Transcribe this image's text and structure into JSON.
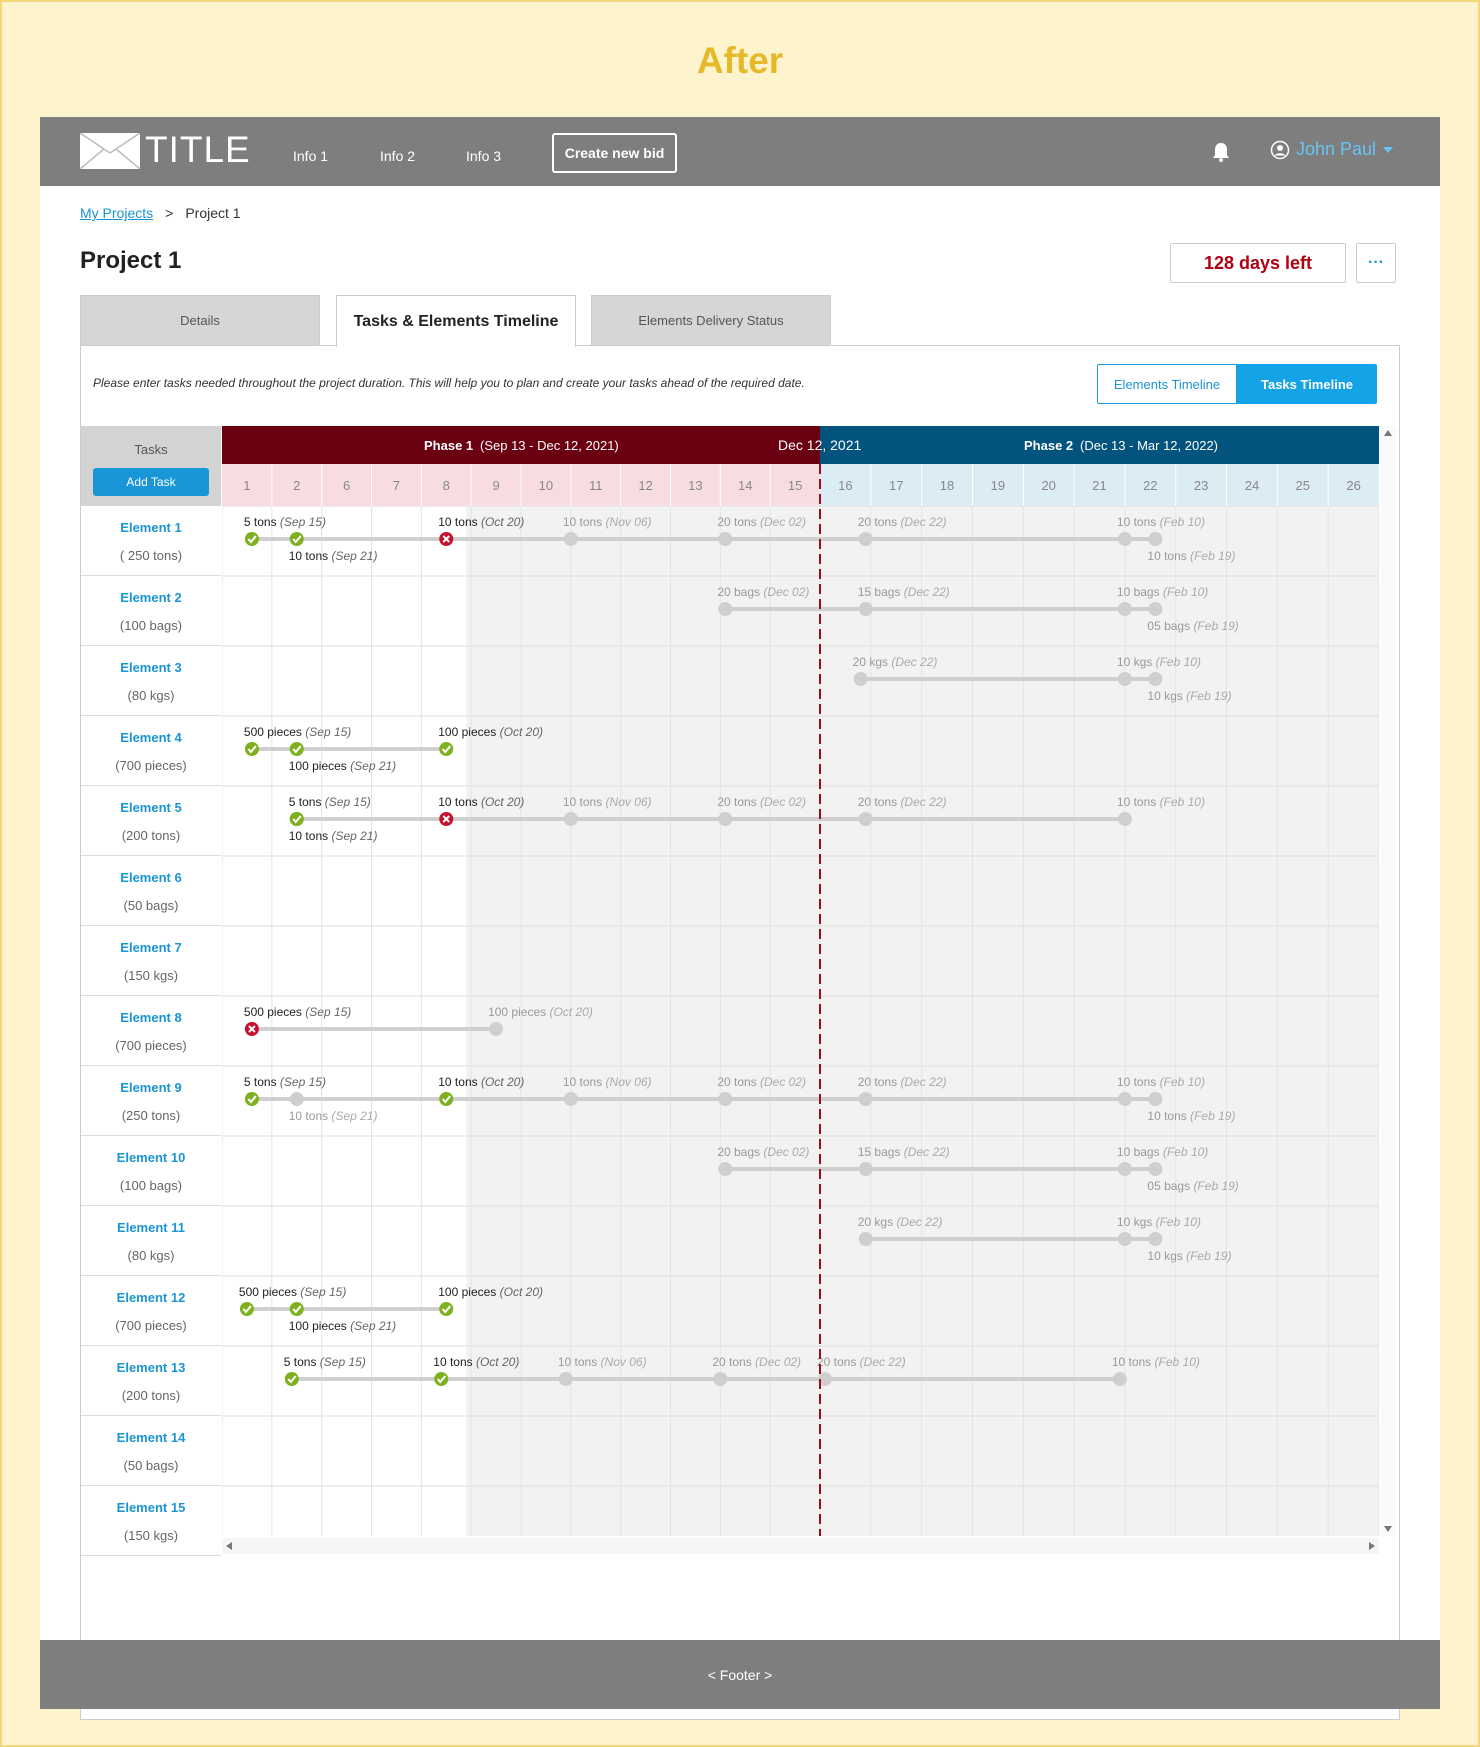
{
  "heading": "After",
  "header": {
    "logo_text": "TITLE",
    "nav": [
      "Info 1",
      "Info 2",
      "Info 3"
    ],
    "create_bid": "Create new bid",
    "user": "John Paul"
  },
  "breadcrumb": {
    "link": "My Projects",
    "sep": ">",
    "current": "Project 1"
  },
  "page": {
    "title": "Project 1",
    "days_left": "128 days left",
    "more": "···"
  },
  "tabs": [
    {
      "label": "Details"
    },
    {
      "label": "Tasks & Elements Timeline"
    },
    {
      "label": "Elements Delivery Status"
    }
  ],
  "panel": {
    "hint": "Please enter tasks needed throughout the project duration. This will help you to plan and create your tasks ahead of the required date.",
    "toggle_elements": "Elements Timeline",
    "toggle_tasks": "Tasks Timeline"
  },
  "grid": {
    "tasks_header": "Tasks",
    "add_task": "Add Task",
    "phase1": {
      "name": "Phase 1",
      "range": "(Sep 13 - Dec 12, 2021)"
    },
    "today_label": "Dec 12, 2021",
    "phase2": {
      "name": "Phase 2",
      "range": "(Dec 13 - Mar 12, 2022)"
    },
    "phase1_columns": [
      "1",
      "2",
      "6",
      "7",
      "8",
      "9",
      "10",
      "11",
      "12",
      "13",
      "14",
      "15"
    ],
    "phase2_columns": [
      "16",
      "17",
      "18",
      "19",
      "20",
      "21",
      "22",
      "23",
      "24",
      "25",
      "26"
    ]
  },
  "rows": [
    {
      "name": "Element 1",
      "qty": "( 250 tons)"
    },
    {
      "name": "Element 2",
      "qty": "(100 bags)"
    },
    {
      "name": "Element 3",
      "qty": "(80 kgs)"
    },
    {
      "name": "Element 4",
      "qty": "(700 pieces)"
    },
    {
      "name": "Element 5",
      "qty": "(200 tons)"
    },
    {
      "name": "Element 6",
      "qty": "(50 bags)"
    },
    {
      "name": "Element 7",
      "qty": "(150 kgs)"
    },
    {
      "name": "Element 8",
      "qty": "(700 pieces)"
    },
    {
      "name": "Element 9",
      "qty": "(250 tons)"
    },
    {
      "name": "Element 10",
      "qty": "(100 bags)"
    },
    {
      "name": "Element 11",
      "qty": "(80 kgs)"
    },
    {
      "name": "Element 12",
      "qty": "(700 pieces)"
    },
    {
      "name": "Element 13",
      "qty": "(200 tons)"
    },
    {
      "name": "Element 14",
      "qty": "(50 bags)"
    },
    {
      "name": "Element 15",
      "qty": "(150 kgs)"
    }
  ],
  "deliveries": [
    {
      "row": 0,
      "col": 0.1,
      "qty": "5 tons",
      "date": "(Sep 15)",
      "status": "done",
      "label": "above"
    },
    {
      "row": 0,
      "col": 1.0,
      "qty": "10 tons",
      "date": "(Sep 21)",
      "status": "done",
      "label": "below"
    },
    {
      "row": 0,
      "col": 4.0,
      "qty": "10 tons",
      "date": "(Oct 20)",
      "status": "failed",
      "label": "above"
    },
    {
      "row": 0,
      "col": 6.5,
      "qty": "10 tons",
      "date": "(Nov 06)",
      "status": "future",
      "label": "above"
    },
    {
      "row": 0,
      "col": 9.6,
      "qty": "20 tons",
      "date": "(Dec 02)",
      "status": "future",
      "label": "above"
    },
    {
      "row": 0,
      "col": 12.4,
      "qty": "20 tons",
      "date": "(Dec 22)",
      "status": "future",
      "label": "above"
    },
    {
      "row": 0,
      "col": 17.5,
      "qty": "10 tons",
      "date": "(Feb 10)",
      "status": "future",
      "label": "above"
    },
    {
      "row": 0,
      "col": 18.1,
      "qty": "10 tons",
      "date": "(Feb 19)",
      "status": "future",
      "label": "below"
    },
    {
      "row": 1,
      "col": 9.6,
      "qty": "20 bags",
      "date": "(Dec 02)",
      "status": "future",
      "label": "above"
    },
    {
      "row": 1,
      "col": 12.4,
      "qty": "15 bags",
      "date": "(Dec 22)",
      "status": "future",
      "label": "above"
    },
    {
      "row": 1,
      "col": 17.5,
      "qty": "10 bags",
      "date": "(Feb 10)",
      "status": "future",
      "label": "above"
    },
    {
      "row": 1,
      "col": 18.1,
      "qty": "05 bags",
      "date": "(Feb 19)",
      "status": "future",
      "label": "below"
    },
    {
      "row": 2,
      "col": 12.3,
      "qty": "20 kgs",
      "date": "(Dec 22)",
      "status": "future",
      "label": "above"
    },
    {
      "row": 2,
      "col": 17.5,
      "qty": "10 kgs",
      "date": "(Feb 10)",
      "status": "future",
      "label": "above"
    },
    {
      "row": 2,
      "col": 18.1,
      "qty": "10 kgs",
      "date": "(Feb 19)",
      "status": "future",
      "label": "below"
    },
    {
      "row": 3,
      "col": 0.1,
      "qty": "500 pieces",
      "date": "(Sep 15)",
      "status": "done",
      "label": "above"
    },
    {
      "row": 3,
      "col": 1.0,
      "qty": "100 pieces",
      "date": "(Sep 21)",
      "status": "done",
      "label": "below"
    },
    {
      "row": 3,
      "col": 4.0,
      "qty": "100 pieces",
      "date": "(Oct 20)",
      "status": "done",
      "label": "above"
    },
    {
      "row": 4,
      "col": 1.0,
      "qty": "5 tons",
      "date": "(Sep 15)",
      "status": "done",
      "label": "above"
    },
    {
      "row": 4,
      "col": 1.0,
      "qty": "10 tons",
      "date": "(Sep 21)",
      "status": "done",
      "label": "below"
    },
    {
      "row": 4,
      "col": 4.0,
      "qty": "10 tons",
      "date": "(Oct 20)",
      "status": "failed",
      "label": "above"
    },
    {
      "row": 4,
      "col": 6.5,
      "qty": "10 tons",
      "date": "(Nov 06)",
      "status": "future",
      "label": "above"
    },
    {
      "row": 4,
      "col": 9.6,
      "qty": "20 tons",
      "date": "(Dec 02)",
      "status": "future",
      "label": "above"
    },
    {
      "row": 4,
      "col": 12.4,
      "qty": "20 tons",
      "date": "(Dec 22)",
      "status": "future",
      "label": "above"
    },
    {
      "row": 4,
      "col": 17.5,
      "qty": "10 tons",
      "date": "(Feb 10)",
      "status": "future",
      "label": "above"
    },
    {
      "row": 7,
      "col": 0.1,
      "qty": "500 pieces",
      "date": "(Sep 15)",
      "status": "failed",
      "label": "above"
    },
    {
      "row": 7,
      "col": 5.0,
      "qty": "100 pieces",
      "date": "(Oct 20)",
      "status": "future",
      "label": "above"
    },
    {
      "row": 8,
      "col": 0.1,
      "qty": "5 tons",
      "date": "(Sep 15)",
      "status": "done",
      "label": "above"
    },
    {
      "row": 8,
      "col": 1.0,
      "qty": "10 tons",
      "date": "(Sep 21)",
      "status": "future",
      "label": "below"
    },
    {
      "row": 8,
      "col": 4.0,
      "qty": "10 tons",
      "date": "(Oct 20)",
      "status": "done",
      "label": "above"
    },
    {
      "row": 8,
      "col": 6.5,
      "qty": "10 tons",
      "date": "(Nov 06)",
      "status": "future",
      "label": "above"
    },
    {
      "row": 8,
      "col": 9.6,
      "qty": "20 tons",
      "date": "(Dec 02)",
      "status": "future",
      "label": "above"
    },
    {
      "row": 8,
      "col": 12.4,
      "qty": "20 tons",
      "date": "(Dec 22)",
      "status": "future",
      "label": "above"
    },
    {
      "row": 8,
      "col": 17.5,
      "qty": "10 tons",
      "date": "(Feb 10)",
      "status": "future",
      "label": "above"
    },
    {
      "row": 8,
      "col": 18.1,
      "qty": "10 tons",
      "date": "(Feb 19)",
      "status": "future",
      "label": "below"
    },
    {
      "row": 9,
      "col": 9.6,
      "qty": "20 bags",
      "date": "(Dec 02)",
      "status": "future",
      "label": "above"
    },
    {
      "row": 9,
      "col": 12.4,
      "qty": "15 bags",
      "date": "(Dec 22)",
      "status": "future",
      "label": "above"
    },
    {
      "row": 9,
      "col": 17.5,
      "qty": "10 bags",
      "date": "(Feb 10)",
      "status": "future",
      "label": "above"
    },
    {
      "row": 9,
      "col": 18.1,
      "qty": "05 bags",
      "date": "(Feb 19)",
      "status": "future",
      "label": "below"
    },
    {
      "row": 10,
      "col": 12.4,
      "qty": "20 kgs",
      "date": "(Dec 22)",
      "status": "future",
      "label": "above"
    },
    {
      "row": 10,
      "col": 17.5,
      "qty": "10 kgs",
      "date": "(Feb 10)",
      "status": "future",
      "label": "above"
    },
    {
      "row": 10,
      "col": 18.1,
      "qty": "10 kgs",
      "date": "(Feb 19)",
      "status": "future",
      "label": "below"
    },
    {
      "row": 11,
      "col": 0.0,
      "qty": "500 pieces",
      "date": "(Sep 15)",
      "status": "done",
      "label": "above"
    },
    {
      "row": 11,
      "col": 1.0,
      "qty": "100 pieces",
      "date": "(Sep 21)",
      "status": "done",
      "label": "below"
    },
    {
      "row": 11,
      "col": 4.0,
      "qty": "100 pieces",
      "date": "(Oct 20)",
      "status": "done",
      "label": "above"
    },
    {
      "row": 12,
      "col": 0.9,
      "qty": "5 tons",
      "date": "(Sep 15)",
      "status": "done",
      "label": "above"
    },
    {
      "row": 12,
      "col": 3.9,
      "qty": "10 tons",
      "date": "(Oct 20)",
      "status": "done",
      "label": "above"
    },
    {
      "row": 12,
      "col": 6.4,
      "qty": "10 tons",
      "date": "(Nov 06)",
      "status": "future",
      "label": "above"
    },
    {
      "row": 12,
      "col": 9.5,
      "qty": "20 tons",
      "date": "(Dec 02)",
      "status": "future",
      "label": "above"
    },
    {
      "row": 12,
      "col": 11.6,
      "qty": "20 tons",
      "date": "(Dec 22)",
      "status": "future",
      "label": "above"
    },
    {
      "row": 12,
      "col": 17.4,
      "qty": "10 tons",
      "date": "(Feb 10)",
      "status": "future",
      "label": "above"
    }
  ],
  "footer": "< Footer >",
  "colors": {
    "phase1": "#6b0011",
    "phase2": "#02537d",
    "accent": "#1896d8",
    "done": "#7fb01f",
    "failed": "#c8102e",
    "future": "#cfcfcf",
    "today_line": "#9e0b1a"
  }
}
